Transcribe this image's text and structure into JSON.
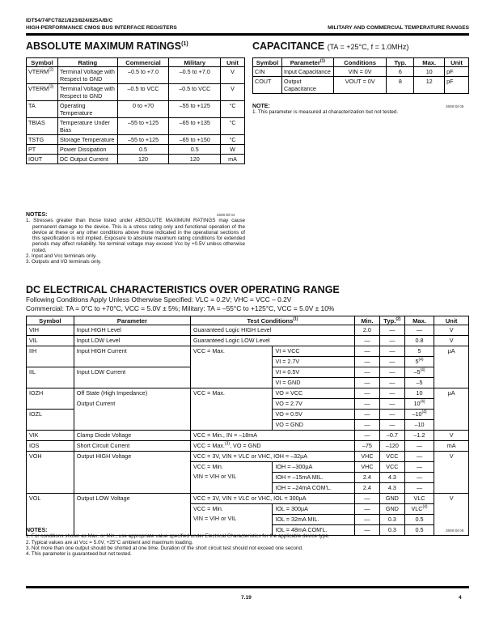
{
  "header": {
    "part_number": "IDT54/74FCT821/823/824/825A/B/C",
    "subtitle": "HIGH-PERFORMANCE CMOS BUS INTERFACE REGISTERS",
    "right": "MILITARY AND COMMERCIAL TEMPERATURE RANGES"
  },
  "abs_max": {
    "title": "ABSOLUTE MAXIMUM RATINGS",
    "title_sup": "(1)",
    "columns": [
      "Symbol",
      "Rating",
      "Commercial",
      "Military",
      "Unit"
    ],
    "rows": [
      [
        [
          "VTERM",
          "(2)"
        ],
        "Terminal Voltage with Respect to GND",
        "–0.5 to +7.0",
        "–0.5 to +7.0",
        "V"
      ],
      [
        [
          "VTERM",
          "(3)"
        ],
        "Terminal Voltage with Respect to GND",
        "–0.5 to VCC",
        "–0.5 to VCC",
        "V"
      ],
      [
        "TA",
        "Operating Temperature",
        "0 to +70",
        "–55 to +125",
        "°C"
      ],
      [
        "TBIAS",
        "Temperature Under Bias",
        "–55 to +125",
        "–65 to +135",
        "°C"
      ],
      [
        "TSTG",
        "Storage Temperature",
        "–55 to +125",
        "–65 to +150",
        "°C"
      ],
      [
        "PT",
        "Power Dissipation",
        "0.5",
        "0.5",
        "W"
      ],
      [
        "IOUT",
        "DC Output Current",
        "120",
        "120",
        "mA"
      ]
    ],
    "table_id": "2608 tbl 04",
    "notes_title": "NOTES:",
    "notes": [
      "1. Stresses greater than those listed under ABSOLUTE MAXIMUM RATINGS may cause permanent damage to the device. This is a stress rating only and functional operation of the device at these or any other conditions above those indicated in the operational sections of this specification is not implied. Exposure to absolute maximum rating conditions for extended periods may affect reliability. No terminal voltage may exceed Vcc by +0.5V unless otherwise noted.",
      "2. Input and Vcc terminals only.",
      "3. Outputs and I/O terminals only."
    ]
  },
  "capacitance": {
    "title": "CAPACITANCE",
    "title_conditions": "(TA = +25°C, f = 1.0MHz)",
    "columns": [
      [
        "Parameter",
        "(1)"
      ],
      "Symbol",
      "Conditions",
      "Typ.",
      "Max.",
      "Unit"
    ],
    "rows": [
      [
        "CIN",
        "Input Capacitance",
        "VIN = 0V",
        "6",
        "10",
        "pF"
      ],
      [
        "COUT",
        "Output Capacitance",
        "VOUT = 0V",
        "8",
        "12",
        "pF"
      ]
    ],
    "table_id": "2608 tbl 05",
    "notes_title": "NOTE:",
    "notes": [
      "1. This parameter is measured at characterization but not tested."
    ]
  },
  "dc": {
    "title": "DC ELECTRICAL CHARACTERISTICS OVER OPERATING RANGE",
    "conditions_line1": "Following Conditions Apply Unless Otherwise Specified: VLC = 0.2V; VHC = VCC – 0.2V",
    "conditions_line2": "Commercial: TA = 0°C to +70°C, VCC = 5.0V ± 5%; Military: TA = –55°C to +125°C, VCC = 5.0V ± 10%",
    "columns": {
      "symbol": "Symbol",
      "parameter": "Parameter",
      "test": "Test Conditions",
      "test_sup": "(1)",
      "min": "Min.",
      "typ": "Typ.",
      "typ_sup": "(2)",
      "max": "Max.",
      "unit": "Unit"
    },
    "rows": [
      {
        "symbol": "VIH",
        "parameter": "Input HIGH Level",
        "cond": "Guaranteed Logic HIGH Level",
        "min": "2.0",
        "typ": "—",
        "max": "—",
        "unit": "V"
      },
      {
        "symbol": "VIL",
        "parameter": "Input LOW Level",
        "cond": "Guaranteed Logic LOW Level",
        "min": "—",
        "typ": "—",
        "max": "0.8",
        "unit": "V"
      },
      {
        "symbol": "IIH",
        "parameter": "Input HIGH Current",
        "cond1": "VCC = Max.",
        "cond2": "VI = VCC",
        "min": "—",
        "typ": "—",
        "max": "5",
        "unit": "µA"
      },
      {
        "cond2": "VI = 2.7V",
        "min": "—",
        "typ": "—",
        "max": "5",
        "max_sup": "(4)"
      },
      {
        "symbol": "IIL",
        "parameter": "Input LOW Current",
        "cond2": "VI = 0.5V",
        "min": "—",
        "typ": "—",
        "max": "–5",
        "max_sup": "(4)"
      },
      {
        "cond2": "VI = GND",
        "min": "—",
        "typ": "—",
        "max": "–5"
      },
      {
        "symbol": "IOZH",
        "parameter": "Off State (High Impedance)",
        "cond1": "VCC = Max.",
        "cond2": "VO = VCC",
        "min": "—",
        "typ": "—",
        "max": "10",
        "unit": "µA"
      },
      {
        "parameter": "Output Current",
        "cond2": "VO = 2.7V",
        "min": "—",
        "typ": "—",
        "max": "10",
        "max_sup": "(4)"
      },
      {
        "symbol": "IOZL",
        "cond2": "VO = 0.5V",
        "min": "—",
        "typ": "—",
        "max": "–10",
        "max_sup": "(4)"
      },
      {
        "cond2": "VO = GND",
        "min": "—",
        "typ": "—",
        "max": "–10"
      },
      {
        "symbol": "VIK",
        "parameter": "Clamp Diode Voltage",
        "cond": "VCC = Min., IN = –18mA",
        "min": "—",
        "typ": "–0.7",
        "max": "–1.2",
        "unit": "V"
      },
      {
        "symbol": "IOS",
        "parameter": "Short Circuit Current",
        "cond": "VCC = Max.",
        "cond_sup": "(3)",
        "cond_tail": ", VO = GND",
        "min": "–75",
        "typ": "–120",
        "max": "—",
        "unit": "mA"
      },
      {
        "symbol": "VOH",
        "parameter": "Output HIGH Voltage",
        "cond": "VCC = 3V, VIN = VLC or VHC, IOH = –32µA",
        "min": "VHC",
        "typ": "VCC",
        "max": "—",
        "unit": "V"
      },
      {
        "cond1": "VCC = Min.",
        "cond1b": "VIN = VIH or VIL",
        "cond2": "IOH = –300µA",
        "min": "VHC",
        "typ": "VCC",
        "max": "—"
      },
      {
        "cond2": "IOH = –15mA MIL.",
        "min": "2.4",
        "typ": "4.3",
        "max": "—"
      },
      {
        "cond2": "IOH = –24mA COM'L.",
        "min": "2.4",
        "typ": "4.3",
        "max": "—"
      },
      {
        "symbol": "VOL",
        "parameter": "Output LOW Voltage",
        "cond": "VCC = 3V, VIN = VLC or VHC, IOL = 300µA",
        "min": "—",
        "typ": "GND",
        "max": "VLC",
        "unit": "V"
      },
      {
        "cond1": "VCC = Min.",
        "cond1b": "VIN = VIH or VIL",
        "cond2": "IOL = 300µA",
        "min": "—",
        "typ": "GND",
        "max": "VLC",
        "max_sup": "(4)"
      },
      {
        "cond2": "IOL = 32mA MIL.",
        "min": "—",
        "typ": "0.3",
        "max": "0.5"
      },
      {
        "cond2": "IOL = 48mA COM'L.",
        "min": "—",
        "typ": "0.3",
        "max": "0.5"
      }
    ],
    "table_id": "2608 tbl 06",
    "notes_title": "NOTES:",
    "notes": [
      "1. For conditions shown as Max. or Min., use appropriate value specified under Electrical Characteristics for the applicable device type.",
      "2. Typical values are at Vcc = 5.0V, +25°C ambient and maximum loading.",
      "3. Not more than one output should be shorted at one time. Duration of the short circuit test should not exceed one second.",
      "4. This parameter is guaranteed but not tested."
    ]
  },
  "footer": {
    "section": "7.19",
    "page": "4"
  }
}
